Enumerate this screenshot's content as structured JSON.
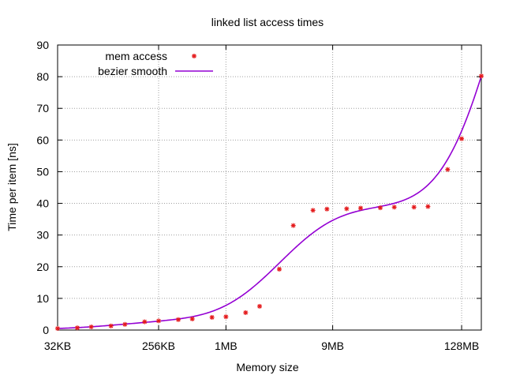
{
  "chart_data": {
    "type": "line",
    "title": "linked list access times",
    "xlabel": "Memory size",
    "ylabel": "Time per item [ns]",
    "x_scale": "log2",
    "xlim": [
      "32KB",
      "192MB"
    ],
    "ylim": [
      0,
      90
    ],
    "grid": true,
    "legend_position": "top-left",
    "x_ticks": [
      "32KB",
      "256KB",
      "1MB",
      "9MB",
      "128MB"
    ],
    "y_ticks": [
      0,
      10,
      20,
      30,
      40,
      50,
      60,
      70,
      80,
      90
    ],
    "series": [
      {
        "name": "mem access",
        "style": "points",
        "color": "#e41a1c",
        "points": [
          [
            "32KB",
            0.5
          ],
          [
            "48KB",
            0.7
          ],
          [
            "64KB",
            1.0
          ],
          [
            "96KB",
            1.3
          ],
          [
            "128KB",
            1.8
          ],
          [
            "192KB",
            2.6
          ],
          [
            "256KB",
            2.9
          ],
          [
            "384KB",
            3.3
          ],
          [
            "512KB",
            3.5
          ],
          [
            "768KB",
            4.0
          ],
          [
            "1MB",
            4.2
          ],
          [
            "1.5MB",
            5.5
          ],
          [
            "2MB",
            7.5
          ],
          [
            "3MB",
            19.2
          ],
          [
            "4MB",
            33.0
          ],
          [
            "6MB",
            37.8
          ],
          [
            "8MB",
            38.2
          ],
          [
            "12MB",
            38.3
          ],
          [
            "16MB",
            38.5
          ],
          [
            "24MB",
            38.6
          ],
          [
            "32MB",
            38.8
          ],
          [
            "48MB",
            38.8
          ],
          [
            "64MB",
            39.0
          ],
          [
            "96MB",
            50.7
          ],
          [
            "128MB",
            60.4
          ],
          [
            "192MB",
            80.2
          ]
        ]
      },
      {
        "name": "bezier smooth",
        "style": "line",
        "color": "#9400d3"
      }
    ]
  }
}
